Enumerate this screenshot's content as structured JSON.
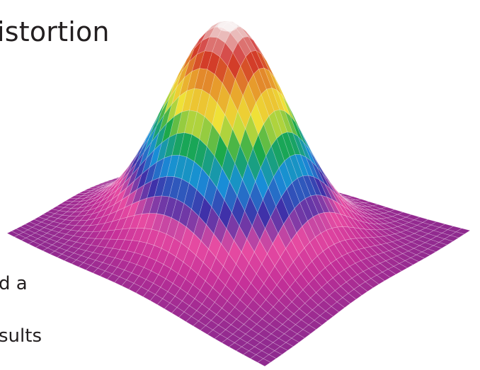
{
  "text_fragments": {
    "title_fragment": "istortion",
    "line1_fragment": "d a",
    "line2_fragment": "sults"
  },
  "figure": {
    "name": "gaussian-peak-mesh-surface",
    "colormap": [
      "#8e2a8f",
      "#c42f98",
      "#e84ca2",
      "#3f30a8",
      "#1890d8",
      "#19a84a",
      "#f0e638",
      "#e8a12c",
      "#cf2a28",
      "#f4f4f4"
    ],
    "wireframe_color": "#ffffff"
  }
}
